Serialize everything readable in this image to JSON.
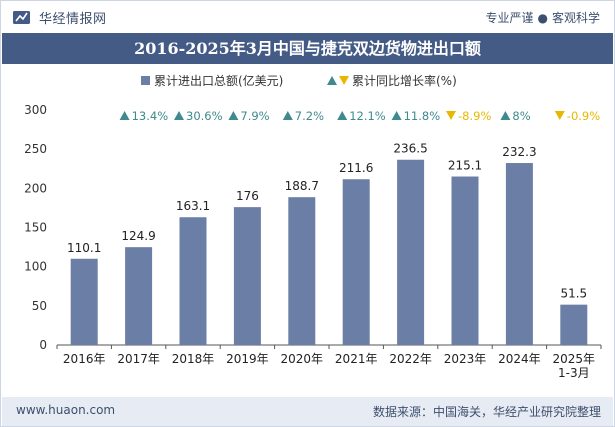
{
  "header": {
    "brand": "华经情报网",
    "tagline_left": "专业严谨",
    "tagline_right": "客观科学",
    "title": "2016-2025年3月中国与捷克双边货物进出口额"
  },
  "footer": {
    "site": "www.huaon.com",
    "source": "数据来源：中国海关，华经产业研究院整理"
  },
  "colors": {
    "bar": "#6b7fa6",
    "title_bg": "#445b86",
    "up": "#3e8a8f",
    "down": "#e8b800",
    "footer_bg": "#e7ebf3"
  },
  "chart_data": {
    "type": "bar",
    "categories": [
      "2016年",
      "2017年",
      "2018年",
      "2019年",
      "2020年",
      "2021年",
      "2022年",
      "2023年",
      "2024年",
      "2025年\n1-3月"
    ],
    "series": [
      {
        "name": "累计进出口总额(亿美元)",
        "values": [
          110.1,
          124.9,
          163.1,
          176,
          188.7,
          211.6,
          236.5,
          215.1,
          232.3,
          51.5
        ],
        "labels": [
          "110.1",
          "124.9",
          "163.1",
          "176",
          "188.7",
          "211.6",
          "236.5",
          "215.1",
          "232.3",
          "51.5"
        ]
      },
      {
        "name": "累计同比增长率(%)",
        "values": [
          null,
          13.4,
          30.6,
          7.9,
          7.2,
          12.1,
          11.8,
          -8.9,
          8,
          -0.9
        ],
        "labels": [
          "",
          "13.4%",
          "30.6%",
          "7.9%",
          "7.2%",
          "12.1%",
          "11.8%",
          "-8.9%",
          "8%",
          "-0.9%"
        ]
      }
    ],
    "ylim": [
      0,
      300
    ],
    "yticks": [
      "0",
      "50",
      "100",
      "150",
      "200",
      "250",
      "300"
    ],
    "ytick_values": [
      0,
      50,
      100,
      150,
      200,
      250,
      300
    ],
    "legend_position": "top-center",
    "grid": false
  }
}
